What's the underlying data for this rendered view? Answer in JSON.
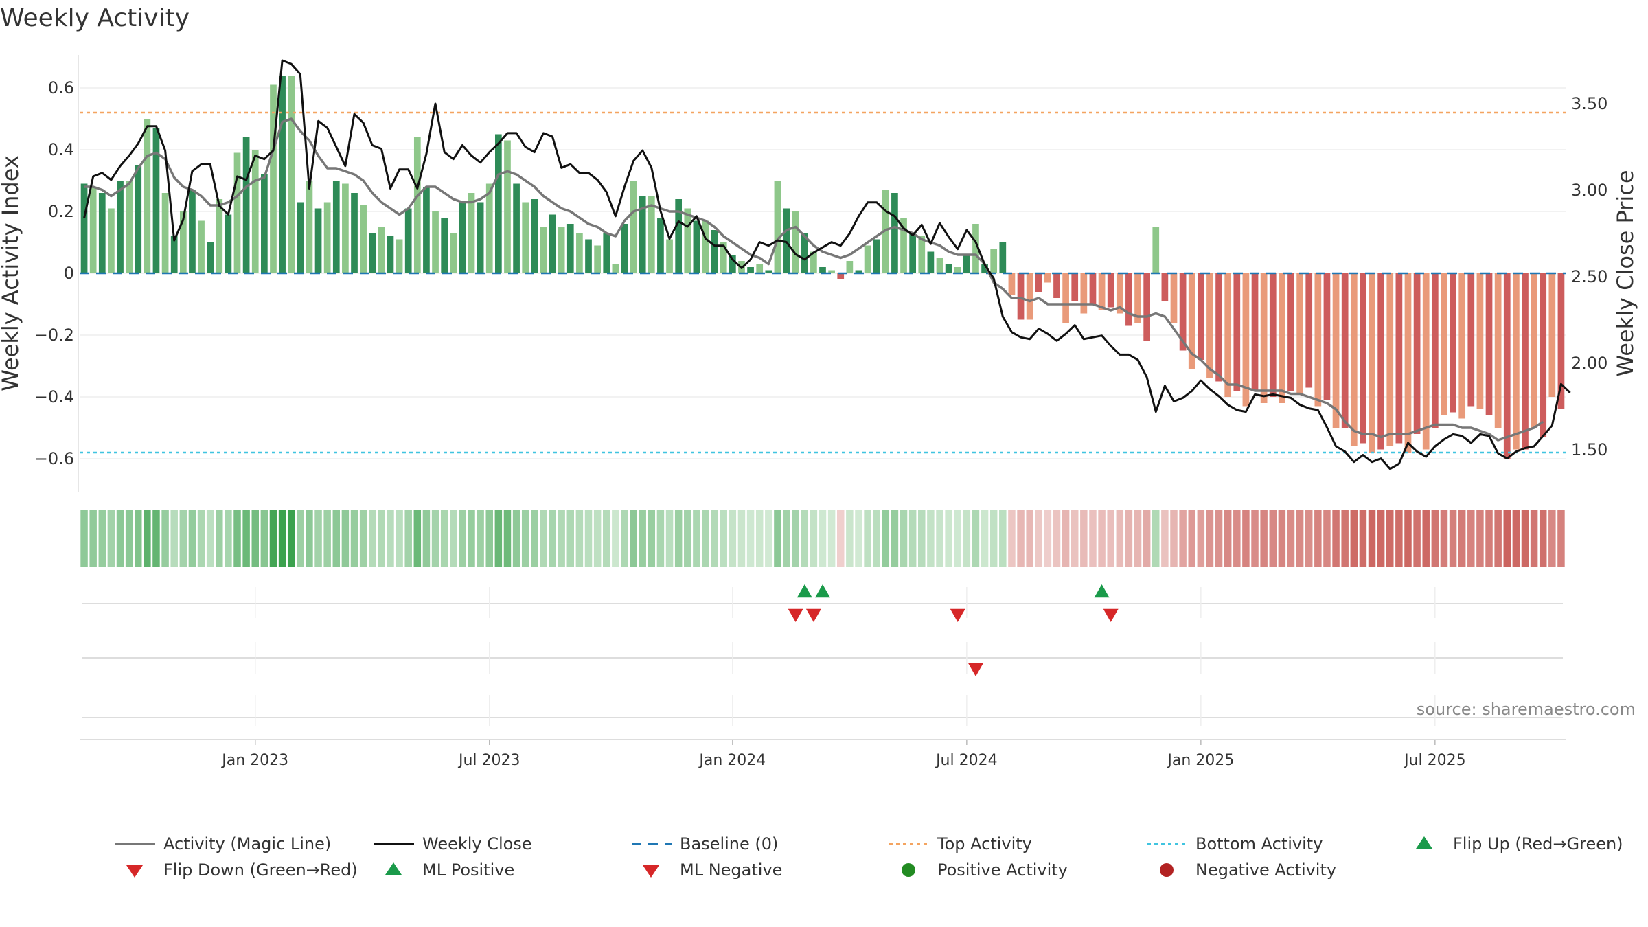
{
  "title": "Weekly Activity",
  "source": "source: sharemaestro.com",
  "colors": {
    "pos_dark": "#2e8b57",
    "pos_light": "#8ec78a",
    "neg_dark": "#cd5c5c",
    "neg_light": "#e99a7a",
    "magic_line": "#777777",
    "close_line": "#111111",
    "baseline": "#1f77b4",
    "top": "#f4a460",
    "bottom": "#40c4e0",
    "flip_up": "#1a9a4a",
    "flip_down": "#d62728",
    "pos_dot": "#228b22",
    "neg_dot": "#b22222"
  },
  "chart_data": {
    "type": "bar",
    "ylabel_left": "Weekly Activity Index",
    "ylabel_right": "Weekly Close Price",
    "ylim_left": [
      -0.7,
      0.7
    ],
    "ylim_right": [
      1.27,
      3.77
    ],
    "yticks_left": [
      "0.6",
      "0.4",
      "0.2",
      "0",
      "−0.2",
      "−0.4",
      "−0.6"
    ],
    "yticks_left_values": [
      0.6,
      0.4,
      0.2,
      0,
      -0.2,
      -0.4,
      -0.6
    ],
    "yticks_right": [
      "3.50",
      "3.00",
      "2.50",
      "2.00",
      "1.50"
    ],
    "yticks_right_values": [
      3.5,
      3.0,
      2.5,
      2.0,
      1.5
    ],
    "xticks": [
      "Jan 2023",
      "Jul 2023",
      "Jan 2024",
      "Jul 2024",
      "Jan 2025",
      "Jul 2025"
    ],
    "xticks_week_index": [
      19,
      45,
      72,
      98,
      124,
      150
    ],
    "top_activity": 0.52,
    "bottom_activity": -0.58,
    "baseline": 0,
    "series": [
      {
        "name": "Weekly Activity Index (bars)",
        "values": [
          0.29,
          0.28,
          0.26,
          0.21,
          0.3,
          0.3,
          0.35,
          0.5,
          0.47,
          0.26,
          0.12,
          0.2,
          0.27,
          0.17,
          0.1,
          0.24,
          0.19,
          0.39,
          0.44,
          0.4,
          0.32,
          0.61,
          0.64,
          0.64,
          0.23,
          0.3,
          0.21,
          0.23,
          0.3,
          0.29,
          0.26,
          0.22,
          0.13,
          0.15,
          0.12,
          0.11,
          0.21,
          0.44,
          0.28,
          0.2,
          0.18,
          0.13,
          0.23,
          0.26,
          0.23,
          0.29,
          0.45,
          0.43,
          0.29,
          0.23,
          0.24,
          0.15,
          0.19,
          0.15,
          0.16,
          0.13,
          0.11,
          0.09,
          0.13,
          0.03,
          0.16,
          0.3,
          0.25,
          0.25,
          0.18,
          0.11,
          0.24,
          0.21,
          0.17,
          0.17,
          0.14,
          0.1,
          0.06,
          0.04,
          0.02,
          0.03,
          0.01,
          0.3,
          0.21,
          0.2,
          0.13,
          0.07,
          0.02,
          0.01,
          -0.02,
          0.04,
          0.01,
          0.09,
          0.11,
          0.27,
          0.26,
          0.18,
          0.13,
          0.12,
          0.07,
          0.05,
          0.03,
          0.02,
          0.06,
          0.16,
          0.03,
          0.08,
          0.1,
          -0.07,
          -0.15,
          -0.15,
          -0.06,
          -0.03,
          -0.08,
          -0.16,
          -0.09,
          -0.13,
          -0.1,
          -0.12,
          -0.11,
          -0.13,
          -0.17,
          -0.16,
          -0.22,
          0.15,
          -0.09,
          -0.16,
          -0.25,
          -0.31,
          -0.28,
          -0.34,
          -0.35,
          -0.4,
          -0.38,
          -0.43,
          -0.38,
          -0.42,
          -0.4,
          -0.42,
          -0.38,
          -0.39,
          -0.37,
          -0.43,
          -0.41,
          -0.5,
          -0.5,
          -0.56,
          -0.55,
          -0.58,
          -0.57,
          -0.56,
          -0.55,
          -0.58,
          -0.52,
          -0.57,
          -0.5,
          -0.46,
          -0.45,
          -0.47,
          -0.43,
          -0.44,
          -0.46,
          -0.5,
          -0.6,
          -0.57,
          -0.57,
          -0.5,
          -0.53,
          -0.4,
          -0.44
        ]
      },
      {
        "name": "Activity (Magic Line)",
        "values": [
          0.28,
          0.28,
          0.27,
          0.25,
          0.27,
          0.29,
          0.34,
          0.38,
          0.39,
          0.37,
          0.31,
          0.28,
          0.27,
          0.25,
          0.22,
          0.22,
          0.23,
          0.25,
          0.28,
          0.3,
          0.31,
          0.4,
          0.49,
          0.5,
          0.46,
          0.43,
          0.38,
          0.34,
          0.34,
          0.33,
          0.32,
          0.3,
          0.26,
          0.23,
          0.21,
          0.19,
          0.21,
          0.25,
          0.28,
          0.28,
          0.26,
          0.24,
          0.23,
          0.23,
          0.24,
          0.26,
          0.32,
          0.33,
          0.32,
          0.3,
          0.28,
          0.25,
          0.23,
          0.21,
          0.2,
          0.18,
          0.16,
          0.15,
          0.13,
          0.12,
          0.17,
          0.2,
          0.21,
          0.22,
          0.21,
          0.2,
          0.2,
          0.19,
          0.18,
          0.17,
          0.15,
          0.12,
          0.1,
          0.08,
          0.06,
          0.05,
          0.03,
          0.11,
          0.14,
          0.15,
          0.12,
          0.09,
          0.07,
          0.06,
          0.05,
          0.06,
          0.08,
          0.1,
          0.12,
          0.14,
          0.15,
          0.14,
          0.13,
          0.11,
          0.1,
          0.09,
          0.07,
          0.06,
          0.06,
          0.06,
          0.03,
          -0.03,
          -0.05,
          -0.08,
          -0.08,
          -0.09,
          -0.08,
          -0.1,
          -0.1,
          -0.1,
          -0.1,
          -0.1,
          -0.1,
          -0.11,
          -0.12,
          -0.11,
          -0.13,
          -0.14,
          -0.14,
          -0.13,
          -0.14,
          -0.18,
          -0.22,
          -0.26,
          -0.28,
          -0.31,
          -0.33,
          -0.36,
          -0.36,
          -0.37,
          -0.38,
          -0.38,
          -0.38,
          -0.38,
          -0.39,
          -0.39,
          -0.4,
          -0.41,
          -0.42,
          -0.44,
          -0.48,
          -0.51,
          -0.52,
          -0.52,
          -0.53,
          -0.52,
          -0.52,
          -0.52,
          -0.51,
          -0.5,
          -0.49,
          -0.49,
          -0.49,
          -0.5,
          -0.5,
          -0.51,
          -0.52,
          -0.54,
          -0.53,
          -0.52,
          -0.51,
          -0.5,
          -0.48
        ]
      },
      {
        "name": "Weekly Close",
        "values": [
          2.84,
          3.08,
          3.1,
          3.06,
          3.14,
          3.2,
          3.27,
          3.37,
          3.37,
          3.23,
          2.71,
          2.83,
          3.11,
          3.15,
          3.15,
          2.91,
          2.86,
          3.08,
          3.06,
          3.2,
          3.18,
          3.23,
          3.75,
          3.73,
          3.67,
          3.01,
          3.4,
          3.36,
          3.25,
          3.14,
          3.44,
          3.39,
          3.26,
          3.24,
          3.01,
          3.12,
          3.12,
          3.01,
          3.21,
          3.5,
          3.22,
          3.18,
          3.26,
          3.2,
          3.16,
          3.22,
          3.27,
          3.33,
          3.33,
          3.25,
          3.22,
          3.33,
          3.31,
          3.13,
          3.15,
          3.1,
          3.1,
          3.06,
          2.99,
          2.85,
          3.02,
          3.17,
          3.23,
          3.13,
          2.88,
          2.72,
          2.82,
          2.79,
          2.85,
          2.72,
          2.68,
          2.68,
          2.6,
          2.55,
          2.6,
          2.7,
          2.68,
          2.71,
          2.7,
          2.63,
          2.6,
          2.64,
          2.67,
          2.7,
          2.68,
          2.75,
          2.85,
          2.93,
          2.93,
          2.88,
          2.85,
          2.78,
          2.74,
          2.8,
          2.69,
          2.81,
          2.73,
          2.66,
          2.77,
          2.7,
          2.57,
          2.49,
          2.27,
          2.18,
          2.15,
          2.14,
          2.2,
          2.17,
          2.13,
          2.17,
          2.22,
          2.14,
          2.15,
          2.16,
          2.1,
          2.05,
          2.05,
          2.02,
          1.92,
          1.72,
          1.87,
          1.78,
          1.8,
          1.84,
          1.9,
          1.85,
          1.81,
          1.76,
          1.73,
          1.72,
          1.82,
          1.81,
          1.82,
          1.81,
          1.8,
          1.76,
          1.74,
          1.73,
          1.63,
          1.52,
          1.49,
          1.43,
          1.47,
          1.43,
          1.45,
          1.39,
          1.42,
          1.54,
          1.49,
          1.46,
          1.52,
          1.56,
          1.59,
          1.58,
          1.54,
          1.59,
          1.58,
          1.48,
          1.45,
          1.49,
          1.51,
          1.52,
          1.58,
          1.64,
          1.88,
          1.83
        ]
      }
    ],
    "heat_strip_activity": "same as bars",
    "flip_up_weeks": [
      80,
      82,
      113
    ],
    "flip_down_weeks": [
      79,
      81,
      97,
      114
    ],
    "ml_negative_weeks": [
      99
    ],
    "ml_positive_weeks": []
  },
  "legend": [
    {
      "key": "magic",
      "label": "Activity (Magic Line)"
    },
    {
      "key": "close",
      "label": "Weekly Close"
    },
    {
      "key": "baseline",
      "label": "Baseline (0)"
    },
    {
      "key": "top",
      "label": "Top Activity"
    },
    {
      "key": "bottom",
      "label": "Bottom Activity"
    },
    {
      "key": "flipup",
      "label": "Flip Up (Red→Green)"
    },
    {
      "key": "flipdown",
      "label": "Flip Down (Green→Red)"
    },
    {
      "key": "mlpos",
      "label": "ML Positive"
    },
    {
      "key": "mlneg",
      "label": "ML Negative"
    },
    {
      "key": "posact",
      "label": "Positive Activity"
    },
    {
      "key": "negact",
      "label": "Negative Activity"
    }
  ]
}
